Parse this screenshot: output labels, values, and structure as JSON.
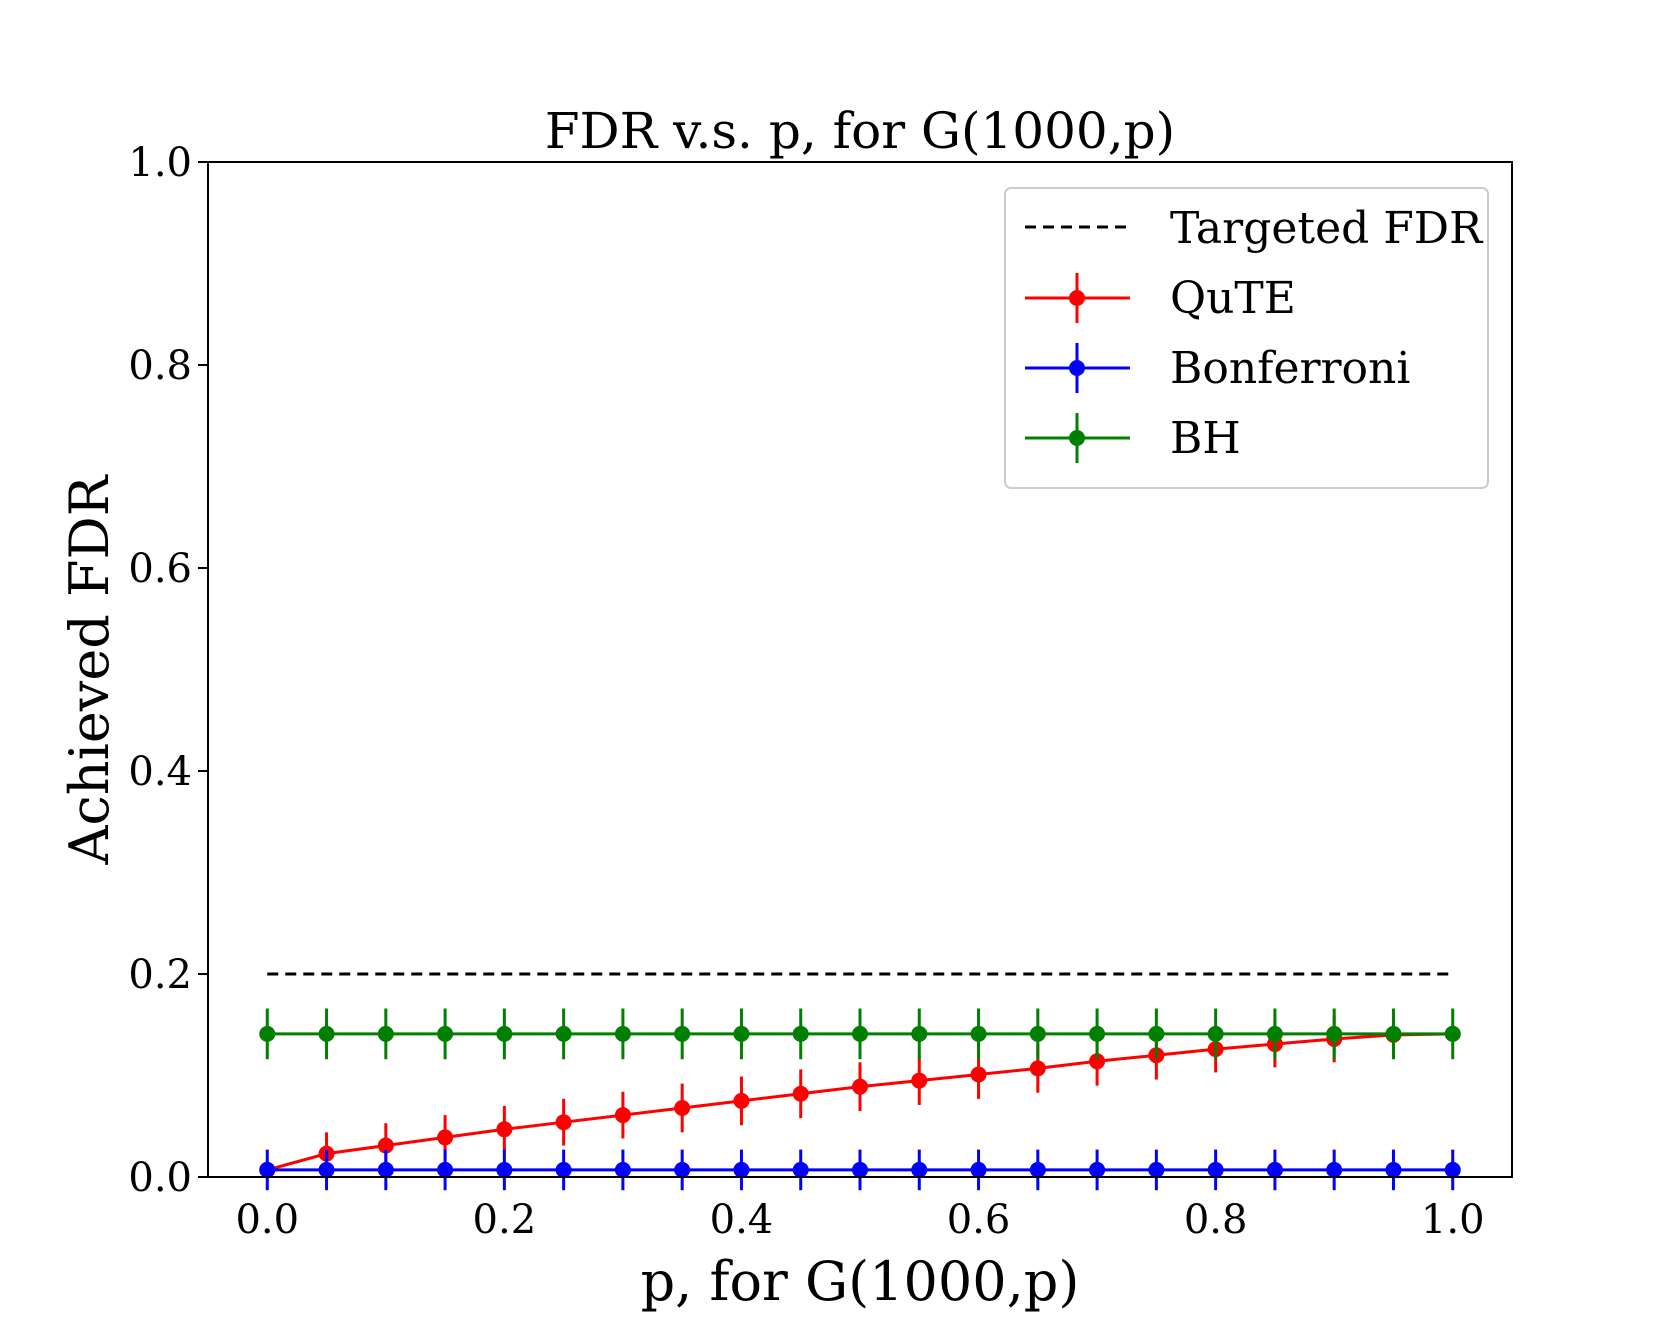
{
  "chart_data": {
    "type": "line",
    "title": "FDR v.s.  p, for G(1000,p)",
    "xlabel": "p, for G(1000,p)",
    "ylabel": "Achieved FDR",
    "xlim": [
      -0.05,
      1.05
    ],
    "ylim": [
      0.0,
      1.0
    ],
    "xticks": [
      0.0,
      0.2,
      0.4,
      0.6,
      0.8,
      1.0
    ],
    "xtick_labels": [
      "0.0",
      "0.2",
      "0.4",
      "0.6",
      "0.8",
      "1.0"
    ],
    "yticks": [
      0.0,
      0.2,
      0.4,
      0.6,
      0.8,
      1.0
    ],
    "ytick_labels": [
      "0.0",
      "0.2",
      "0.4",
      "0.6",
      "0.8",
      "1.0"
    ],
    "grid": false,
    "legend_position": "upper-right",
    "x": [
      0.0,
      0.05,
      0.1,
      0.15,
      0.2,
      0.25,
      0.3,
      0.35,
      0.4,
      0.45,
      0.5,
      0.55,
      0.6,
      0.65,
      0.7,
      0.75,
      0.8,
      0.85,
      0.9,
      0.95,
      1.0
    ],
    "target": {
      "name": "Targeted FDR",
      "value": 0.2,
      "color": "#000000",
      "style": "dashed"
    },
    "series": [
      {
        "name": "QuTE",
        "color": "#ff0000",
        "values": [
          0.007,
          0.023,
          0.031,
          0.039,
          0.047,
          0.054,
          0.061,
          0.068,
          0.075,
          0.082,
          0.089,
          0.095,
          0.101,
          0.107,
          0.114,
          0.12,
          0.126,
          0.131,
          0.136,
          0.14,
          0.141
        ],
        "errors": [
          0.0,
          0.021,
          0.022,
          0.022,
          0.023,
          0.023,
          0.023,
          0.024,
          0.024,
          0.024,
          0.024,
          0.024,
          0.024,
          0.024,
          0.024,
          0.024,
          0.023,
          0.023,
          0.023,
          0.023,
          0.0
        ]
      },
      {
        "name": "Bonferroni",
        "color": "#0000ff",
        "values": [
          0.007,
          0.007,
          0.007,
          0.007,
          0.007,
          0.007,
          0.007,
          0.007,
          0.007,
          0.007,
          0.007,
          0.007,
          0.007,
          0.007,
          0.007,
          0.007,
          0.007,
          0.007,
          0.007,
          0.007,
          0.007
        ],
        "errors": [
          0.02,
          0.02,
          0.02,
          0.02,
          0.02,
          0.02,
          0.02,
          0.02,
          0.02,
          0.02,
          0.02,
          0.02,
          0.02,
          0.02,
          0.02,
          0.02,
          0.02,
          0.02,
          0.02,
          0.02,
          0.02
        ]
      },
      {
        "name": "BH",
        "color": "#008000",
        "values": [
          0.141,
          0.141,
          0.141,
          0.141,
          0.141,
          0.141,
          0.141,
          0.141,
          0.141,
          0.141,
          0.141,
          0.141,
          0.141,
          0.141,
          0.141,
          0.141,
          0.141,
          0.141,
          0.141,
          0.141,
          0.141
        ],
        "errors": [
          0.025,
          0.025,
          0.025,
          0.025,
          0.025,
          0.025,
          0.025,
          0.025,
          0.025,
          0.025,
          0.025,
          0.025,
          0.025,
          0.025,
          0.025,
          0.025,
          0.025,
          0.025,
          0.025,
          0.025,
          0.025
        ]
      }
    ]
  }
}
